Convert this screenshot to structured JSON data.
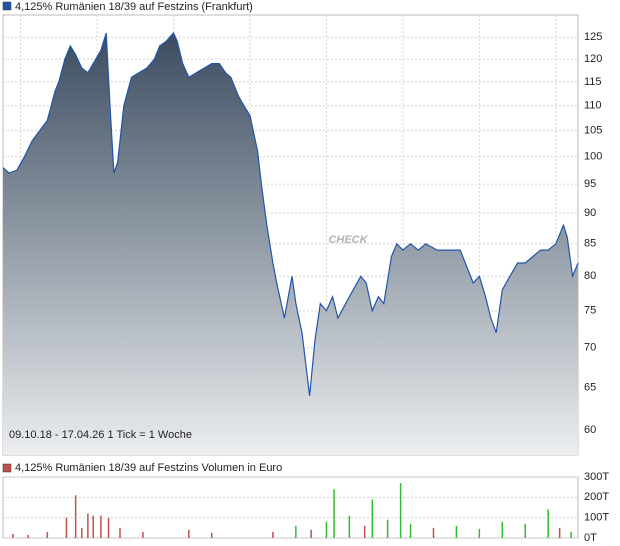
{
  "charts": [
    {
      "type": "area",
      "title": "4,125% Rumänien 18/39 auf Festzins (Frankfurt)",
      "title_color": "#2255aa",
      "note": "09.10.18 - 17.04.26   1 Tick = 1 Woche",
      "watermark": "CHECK",
      "log_scale": true,
      "grid": true,
      "line_color": "#2255aa",
      "fill_top": "#3b4c60",
      "fill_bottom": "#eceef0",
      "xlim": [
        2018.77,
        2026.29
      ],
      "xticks": [
        2019,
        2020,
        2021,
        2022,
        2023,
        2024,
        2025,
        2026
      ],
      "ylim": [
        57.3,
        130.3
      ],
      "yticks": [
        60,
        65,
        70,
        75,
        80,
        85,
        90,
        95,
        100,
        105,
        110,
        115,
        120,
        125
      ],
      "x": [
        2018.77,
        2018.85,
        2018.95,
        2019.05,
        2019.15,
        2019.25,
        2019.35,
        2019.45,
        2019.5,
        2019.58,
        2019.65,
        2019.72,
        2019.8,
        2019.88,
        2019.95,
        2020.05,
        2020.12,
        2020.17,
        2020.22,
        2020.27,
        2020.35,
        2020.45,
        2020.55,
        2020.65,
        2020.75,
        2020.82,
        2020.9,
        2021.0,
        2021.05,
        2021.12,
        2021.2,
        2021.3,
        2021.4,
        2021.5,
        2021.6,
        2021.68,
        2021.75,
        2021.85,
        2021.92,
        2022.0,
        2022.1,
        2022.15,
        2022.22,
        2022.3,
        2022.35,
        2022.45,
        2022.55,
        2022.6,
        2022.68,
        2022.78,
        2022.85,
        2022.92,
        2023.0,
        2023.08,
        2023.15,
        2023.25,
        2023.35,
        2023.45,
        2023.52,
        2023.6,
        2023.68,
        2023.75,
        2023.85,
        2023.92,
        2024.0,
        2024.1,
        2024.2,
        2024.3,
        2024.45,
        2024.6,
        2024.75,
        2024.85,
        2024.92,
        2025.0,
        2025.08,
        2025.15,
        2025.22,
        2025.3,
        2025.4,
        2025.5,
        2025.6,
        2025.7,
        2025.8,
        2025.9,
        2026.0,
        2026.1,
        2026.15,
        2026.22,
        2026.29
      ],
      "values": [
        98,
        97,
        97.5,
        100,
        103,
        105,
        107,
        113,
        115,
        120,
        123,
        121,
        118,
        117,
        119,
        122,
        126,
        110,
        97,
        99,
        110,
        116,
        117,
        118,
        120,
        123,
        124,
        126,
        124,
        119,
        116,
        117,
        118,
        119,
        119,
        117,
        116,
        112,
        110,
        108,
        101,
        95,
        88,
        82,
        79,
        74,
        80,
        76,
        72,
        64,
        71,
        76,
        75,
        77,
        74,
        76,
        78,
        80,
        79,
        75,
        77,
        76,
        83,
        85,
        84,
        85,
        84,
        85,
        84,
        84,
        84,
        81,
        79,
        80,
        77,
        74,
        72,
        78,
        80,
        82,
        82,
        83,
        84,
        84,
        85,
        88,
        86,
        80,
        82
      ]
    },
    {
      "type": "volume",
      "title": "4,125% Rumänien 18/39 auf Festzins Volumen in Euro",
      "title_color": "#c0504d",
      "grid": true,
      "xlim": [
        2018.77,
        2026.29
      ],
      "ylim": [
        0,
        300000
      ],
      "yticks": [
        {
          "value": 0,
          "label": "0T"
        },
        {
          "value": 100000,
          "label": "100T"
        },
        {
          "value": 200000,
          "label": "200T"
        },
        {
          "value": 300000,
          "label": "300T"
        }
      ],
      "x": [
        2018.9,
        2019.1,
        2019.35,
        2019.6,
        2019.72,
        2019.8,
        2019.88,
        2019.95,
        2020.05,
        2020.15,
        2020.3,
        2020.6,
        2021.2,
        2021.5,
        2022.3,
        2022.6,
        2022.8,
        2023.0,
        2023.1,
        2023.3,
        2023.5,
        2023.6,
        2023.8,
        2023.97,
        2024.1,
        2024.4,
        2024.7,
        2025.0,
        2025.3,
        2025.6,
        2025.9,
        2026.05,
        2026.2
      ],
      "values": [
        20000,
        15000,
        30000,
        100000,
        210000,
        50000,
        120000,
        110000,
        110000,
        100000,
        50000,
        30000,
        40000,
        25000,
        30000,
        60000,
        40000,
        80000,
        240000,
        110000,
        60000,
        190000,
        90000,
        270000,
        70000,
        50000,
        60000,
        45000,
        80000,
        70000,
        140000,
        50000,
        30000
      ],
      "colors": [
        "#c0504d",
        "#c0504d",
        "#c0504d",
        "#c0504d",
        "#c0504d",
        "#c0504d",
        "#c0504d",
        "#c0504d",
        "#c0504d",
        "#c0504d",
        "#c0504d",
        "#c0504d",
        "#c0504d",
        "#c0504d",
        "#c0504d",
        "#33bb33",
        "#c0504d",
        "#33bb33",
        "#33bb33",
        "#33bb33",
        "#c0504d",
        "#33bb33",
        "#33bb33",
        "#33bb33",
        "#33bb33",
        "#c0504d",
        "#33bb33",
        "#33bb33",
        "#33bb33",
        "#33bb33",
        "#33bb33",
        "#c0504d",
        "#33bb33"
      ]
    }
  ]
}
